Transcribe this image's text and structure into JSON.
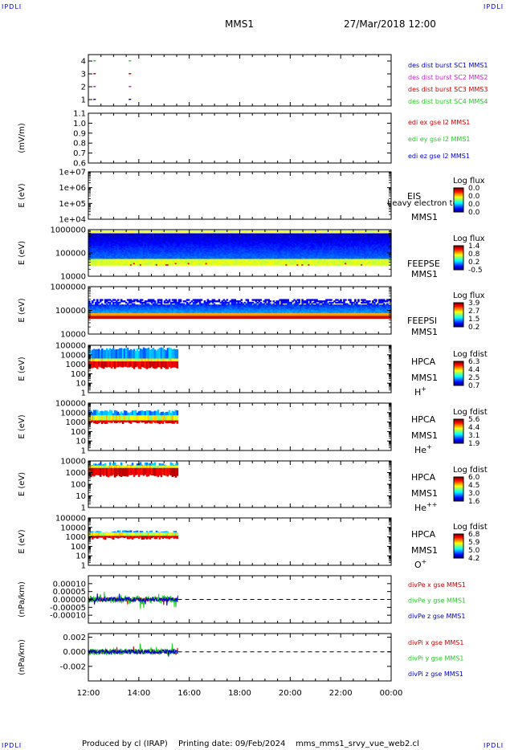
{
  "header": {
    "corner_tl": "IPDLI",
    "corner_tr": "IPDLI",
    "corner_bl": "IPDLI",
    "corner_br": "IPDLI",
    "mission": "MMS1",
    "date": "27/Mar/2018 12:00"
  },
  "footer": {
    "produced_by": "Produced by cl (IRAP)",
    "printing_date": "Printing date: 09/Feb/2024",
    "filename": "mms_mms1_srvy_vue_web2.cl"
  },
  "x_axis": {
    "ticks": [
      "12:00",
      "14:00",
      "16:00",
      "18:00",
      "20:00",
      "22:00",
      "00:00"
    ],
    "range_hours": [
      12,
      24
    ]
  },
  "colors": {
    "red": "#cc0000",
    "green": "#22cc22",
    "blue": "#0000cc",
    "magenta": "#cc22cc",
    "dashed": "#000000"
  },
  "chart_data": [
    {
      "type": "scatter",
      "name": "burst",
      "ylim": [
        0.5,
        4.5
      ],
      "yticks": [
        "4",
        "3",
        "2",
        "1"
      ],
      "yvalues": [
        4,
        3,
        2,
        1
      ],
      "legend": [
        {
          "text": "des dist burst SC1 MMS1",
          "color": "#0000cc"
        },
        {
          "text": "des dist burst SC2 MMS2",
          "color": "#cc22cc"
        },
        {
          "text": "des dist burst SC3 MMS3",
          "color": "#cc0000"
        },
        {
          "text": "des dist burst SC4 MMS4",
          "color": "#22cc22"
        }
      ],
      "points": [
        {
          "x": 12.2,
          "y": 4,
          "color": "#22cc22"
        },
        {
          "x": 13.6,
          "y": 4,
          "color": "#22cc22"
        },
        {
          "x": 12.2,
          "y": 3,
          "color": "#cc0000"
        },
        {
          "x": 13.6,
          "y": 3,
          "color": "#cc0000"
        },
        {
          "x": 12.2,
          "y": 2,
          "color": "#cc22cc"
        },
        {
          "x": 13.6,
          "y": 2,
          "color": "#cc22cc"
        },
        {
          "x": 12.2,
          "y": 1,
          "color": "#0000cc"
        },
        {
          "x": 13.6,
          "y": 1,
          "color": "#0000cc"
        }
      ]
    },
    {
      "type": "line",
      "name": "edi",
      "ylabel": "(mV/m)",
      "ylim": [
        0.6,
        1.1
      ],
      "yticks": [
        "1.1",
        "1.0",
        "0.9",
        "0.8",
        "0.7",
        "0.6"
      ],
      "yvalues": [
        1.1,
        1.0,
        0.9,
        0.8,
        0.7,
        0.6
      ],
      "legend": [
        {
          "text": "edi ex gse l2 MMS1",
          "color": "#cc0000"
        },
        {
          "text": "edi ey gse l2 MMS1",
          "color": "#22cc22"
        },
        {
          "text": "edi ez gse l2 MMS1",
          "color": "#0000cc"
        }
      ]
    },
    {
      "type": "heatmap",
      "name": "eis",
      "ylabel": "E (eV)",
      "ylim": [
        10000,
        10000000
      ],
      "yticks": [
        "1e+07",
        "1e+06",
        "1e+05",
        "1e+04"
      ],
      "yvalues": [
        10000000,
        1000000,
        100000,
        10000
      ],
      "inst": "EIS",
      "sc": "MMS1",
      "species": "",
      "overlay_text": "heavy electron to",
      "cbar_title": "Log flux",
      "cbar_ticks": [
        "0.0",
        "0.0",
        "0.0",
        "0.0"
      ]
    },
    {
      "type": "heatmap",
      "name": "feepse",
      "ylabel": "E (eV)",
      "ylim": [
        10000,
        1000000
      ],
      "yticks": [
        "1000000",
        "100000",
        "10000"
      ],
      "yvalues": [
        1000000,
        100000,
        10000
      ],
      "inst": "FEEPSE",
      "sc": "MMS1",
      "species": "",
      "cbar_title": "Log flux",
      "cbar_ticks": [
        "1.4",
        "0.8",
        "0.2",
        "-0.5"
      ],
      "x_extent": [
        12.0,
        24.0
      ]
    },
    {
      "type": "heatmap",
      "name": "feepsi",
      "ylabel": "E (eV)",
      "ylim": [
        10000,
        1000000
      ],
      "yticks": [
        "1000000",
        "100000",
        "10000"
      ],
      "yvalues": [
        1000000,
        100000,
        10000
      ],
      "inst": "FEEPSI",
      "sc": "MMS1",
      "species": "",
      "cbar_title": "Log flux",
      "cbar_ticks": [
        "3.9",
        "2.7",
        "1.5",
        "0.2"
      ],
      "x_extent": [
        12.0,
        24.0
      ]
    },
    {
      "type": "heatmap",
      "name": "hpca-h",
      "ylabel": "E (eV)",
      "ylim": [
        1,
        100000
      ],
      "yticks": [
        "100000",
        "10000",
        "1000",
        "100",
        "10",
        "1"
      ],
      "yvalues": [
        100000,
        10000,
        1000,
        100,
        10,
        1
      ],
      "inst": "HPCA",
      "sc": "MMS1",
      "species": "H",
      "charge": "+",
      "cbar_title": "Log fdist",
      "cbar_ticks": [
        "6.3",
        "4.4",
        "2.5",
        "0.7"
      ],
      "x_extent": [
        12.0,
        15.55
      ]
    },
    {
      "type": "heatmap",
      "name": "hpca-he",
      "ylabel": "E (eV)",
      "ylim": [
        1,
        100000
      ],
      "yticks": [
        "100000",
        "10000",
        "1000",
        "100",
        "10",
        "1"
      ],
      "yvalues": [
        100000,
        10000,
        1000,
        100,
        10,
        1
      ],
      "inst": "HPCA",
      "sc": "MMS1",
      "species": "He",
      "charge": "+",
      "cbar_title": "Log fdist",
      "cbar_ticks": [
        "5.6",
        "4.4",
        "3.1",
        "1.9"
      ],
      "x_extent": [
        12.0,
        15.55
      ]
    },
    {
      "type": "heatmap",
      "name": "hpca-hepp",
      "ylabel": "E (eV)",
      "ylim": [
        1,
        10000
      ],
      "yticks": [
        "10000",
        "1000",
        "100",
        "10",
        "1"
      ],
      "yvalues": [
        10000,
        1000,
        100,
        10,
        1
      ],
      "inst": "HPCA",
      "sc": "MMS1",
      "species": "He",
      "charge": "++",
      "cbar_title": "Log fdist",
      "cbar_ticks": [
        "6.0",
        "4.5",
        "3.0",
        "1.6"
      ],
      "x_extent": [
        12.0,
        15.55
      ]
    },
    {
      "type": "heatmap",
      "name": "hpca-o",
      "ylabel": "E (eV)",
      "ylim": [
        1,
        100000
      ],
      "yticks": [
        "100000",
        "10000",
        "1000",
        "100",
        "10",
        "1"
      ],
      "yvalues": [
        100000,
        10000,
        1000,
        100,
        10,
        1
      ],
      "inst": "HPCA",
      "sc": "MMS1",
      "species": "O",
      "charge": "+",
      "cbar_title": "Log fdist",
      "cbar_ticks": [
        "6.8",
        "5.9",
        "5.0",
        "4.2"
      ],
      "x_extent": [
        12.0,
        15.55
      ]
    },
    {
      "type": "line",
      "name": "divpe",
      "ylabel": "(nPa/km)",
      "ylim": [
        -0.00015,
        0.00015
      ],
      "yticks": [
        "0.00010",
        "0.00005",
        "0.00000",
        "-0.00005",
        "-0.00010"
      ],
      "yvalues": [
        0.0001,
        5e-05,
        0,
        -5e-05,
        -0.0001
      ],
      "legend": [
        {
          "text": "divPe x gse MMS1",
          "color": "#cc0000"
        },
        {
          "text": "divPe y gse MMS1",
          "color": "#22cc22"
        },
        {
          "text": "divPe z gse MMS1",
          "color": "#0000cc"
        }
      ],
      "x_extent": [
        12.0,
        15.55
      ]
    },
    {
      "type": "line",
      "name": "divpi",
      "ylabel": "(nPa/km)",
      "ylim": [
        -0.004,
        0.0025
      ],
      "yticks": [
        "0.002",
        "0.000",
        "-0.002"
      ],
      "yvalues": [
        0.002,
        0,
        -0.002
      ],
      "legend": [
        {
          "text": "divPi x gse MMS1",
          "color": "#cc0000"
        },
        {
          "text": "divPi y gse MMS1",
          "color": "#22cc22"
        },
        {
          "text": "divPi z gse MMS1",
          "color": "#0000cc"
        }
      ],
      "x_extent": [
        12.0,
        15.55
      ]
    }
  ]
}
